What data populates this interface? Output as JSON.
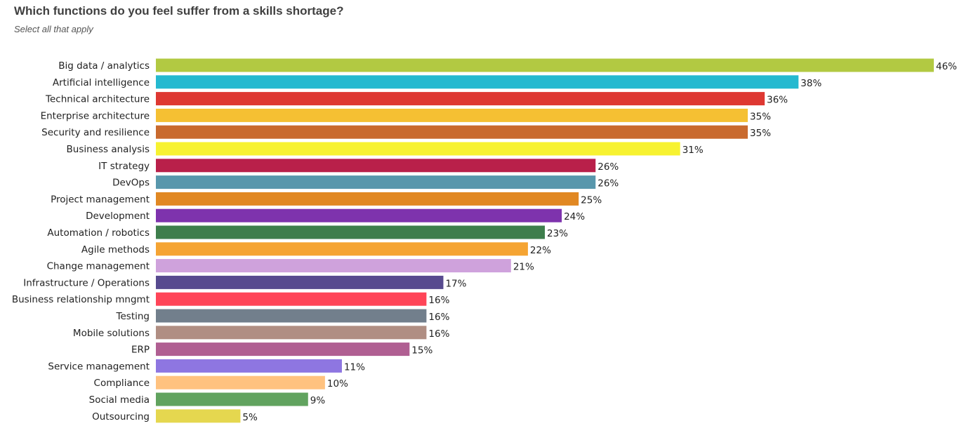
{
  "chart_data": {
    "type": "bar",
    "orientation": "horizontal",
    "title": "Which functions do you feel suffer from a skills shortage?",
    "subtitle": "Select all that apply",
    "grid": false,
    "legend": "none",
    "value_suffix": "%",
    "xlim": [
      0,
      46
    ],
    "categories": [
      "Big data / analytics",
      "Artificial intelligence",
      "Technical architecture",
      "Enterprise architecture",
      "Security and resilience",
      "Business analysis",
      "IT strategy",
      "DevOps",
      "Project management",
      "Development",
      "Automation / robotics",
      "Agile methods",
      "Change management",
      "Infrastructure / Operations",
      "Business relationship mngmt",
      "Testing",
      "Mobile solutions",
      "ERP",
      "Service management",
      "Compliance",
      "Social media",
      "Outsourcing"
    ],
    "values": [
      46,
      38,
      36,
      35,
      35,
      31,
      26,
      26,
      25,
      24,
      23,
      22,
      21,
      17,
      16,
      16,
      16,
      15,
      11,
      10,
      9,
      5
    ],
    "value_labels": [
      "46%",
      "38%",
      "36%",
      "35%",
      "35%",
      "31%",
      "26%",
      "26%",
      "25%",
      "24%",
      "23%",
      "22%",
      "21%",
      "17%",
      "16%",
      "16%",
      "16%",
      "15%",
      "11%",
      "10%",
      "9%",
      "5%"
    ],
    "colors": [
      "#b2c942",
      "#25b9d0",
      "#de3832",
      "#f5c033",
      "#c96a2e",
      "#f7f231",
      "#b9204a",
      "#5897ac",
      "#e18823",
      "#7e33ad",
      "#3e7e4c",
      "#f5a433",
      "#cfa2dc",
      "#574a8f",
      "#ff4558",
      "#727f8c",
      "#b08e83",
      "#b05f92",
      "#8e76e1",
      "#ffc27f",
      "#61a35f",
      "#e5d74f"
    ]
  }
}
